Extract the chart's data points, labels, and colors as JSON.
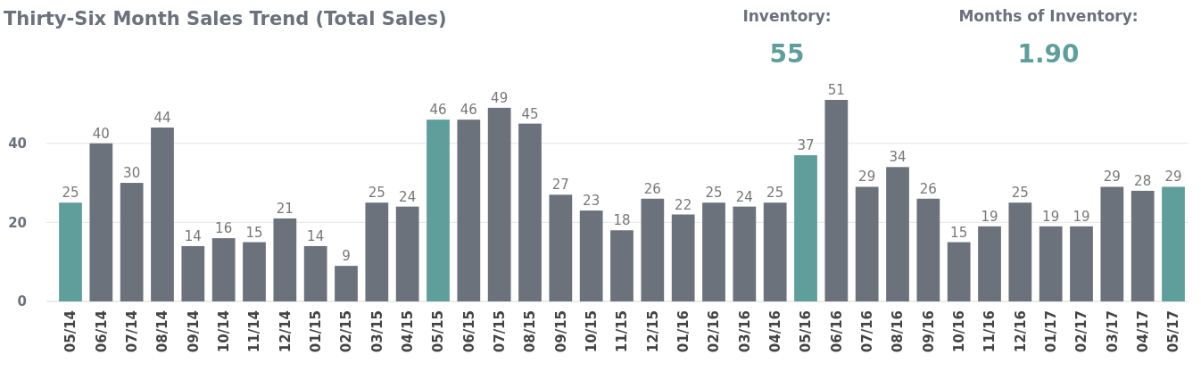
{
  "chart_data": {
    "type": "bar",
    "title": "Thirty-Six Month Sales Trend (Total Sales)",
    "annotations": [
      "Inventory:",
      "55",
      "Months of Inventory:",
      "1.90"
    ],
    "categories": [
      "05/14",
      "06/14",
      "07/14",
      "08/14",
      "09/14",
      "10/14",
      "11/14",
      "12/14",
      "01/15",
      "02/15",
      "03/15",
      "04/15",
      "05/15",
      "06/15",
      "07/15",
      "08/15",
      "09/15",
      "10/15",
      "11/15",
      "12/15",
      "01/16",
      "02/16",
      "03/16",
      "04/16",
      "05/16",
      "06/16",
      "07/16",
      "08/16",
      "09/16",
      "10/16",
      "11/16",
      "12/16",
      "01/17",
      "02/17",
      "03/17",
      "04/17",
      "05/17"
    ],
    "values": [
      25,
      40,
      30,
      44,
      14,
      16,
      15,
      21,
      14,
      9,
      25,
      24,
      46,
      46,
      49,
      45,
      27,
      23,
      18,
      26,
      22,
      25,
      24,
      25,
      37,
      51,
      29,
      34,
      26,
      15,
      19,
      25,
      19,
      19,
      29,
      28,
      29
    ],
    "colors": [
      "#5f9e9a",
      "#6b727c",
      "#6b727c",
      "#6b727c",
      "#6b727c",
      "#6b727c",
      "#6b727c",
      "#6b727c",
      "#6b727c",
      "#6b727c",
      "#6b727c",
      "#6b727c",
      "#5f9e9a",
      "#6b727c",
      "#6b727c",
      "#6b727c",
      "#6b727c",
      "#6b727c",
      "#6b727c",
      "#6b727c",
      "#6b727c",
      "#6b727c",
      "#6b727c",
      "#6b727c",
      "#5f9e9a",
      "#6b727c",
      "#6b727c",
      "#6b727c",
      "#6b727c",
      "#6b727c",
      "#6b727c",
      "#6b727c",
      "#6b727c",
      "#6b727c",
      "#6b727c",
      "#6b727c",
      "#5f9e9a"
    ],
    "ylim": [
      0,
      51
    ],
    "yticks": [
      0,
      20,
      40
    ],
    "grid": "y",
    "data_labels": true
  }
}
